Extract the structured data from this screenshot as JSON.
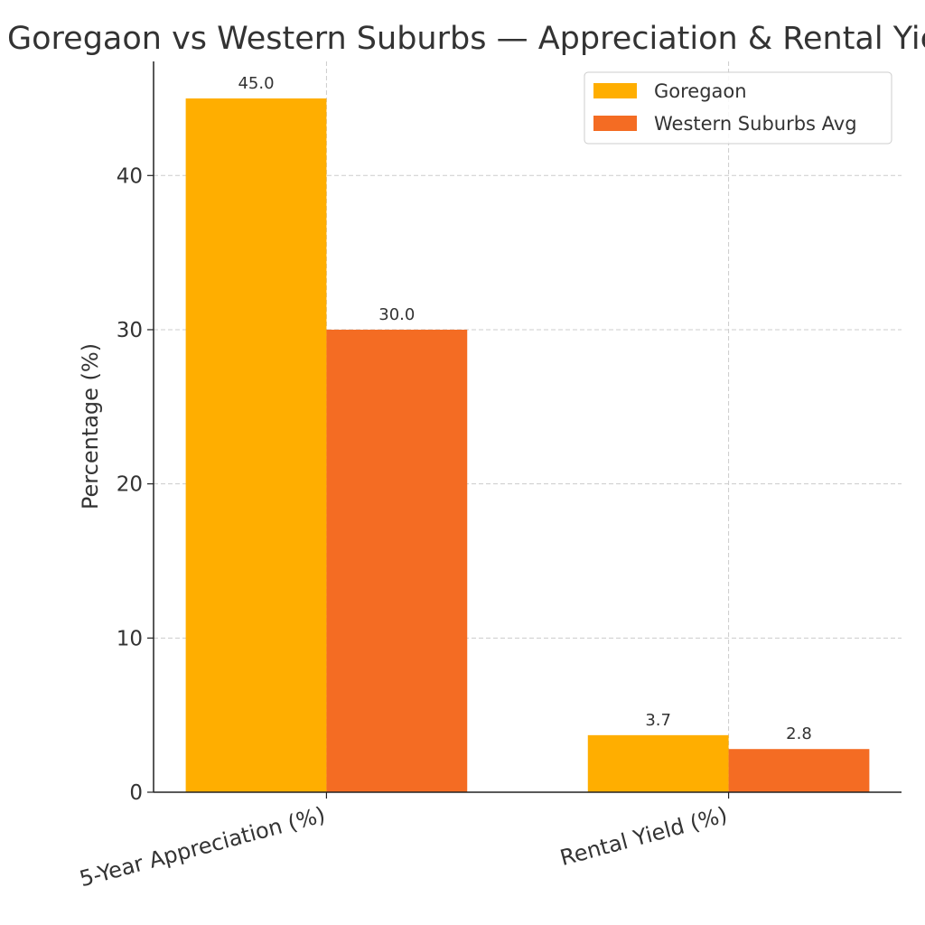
{
  "chart_data": {
    "type": "bar",
    "title": "Goregaon vs Western Suburbs — Appreciation & Rental Yield",
    "xlabel": "",
    "ylabel": "Percentage (%)",
    "categories": [
      "5-Year Appreciation (%)",
      "Rental Yield (%)"
    ],
    "series": [
      {
        "name": "Goregaon",
        "values": [
          45.0,
          3.7
        ],
        "color": "#FFAE00"
      },
      {
        "name": "Western Suburbs Avg",
        "values": [
          30.0,
          2.8
        ],
        "color": "#F46C23"
      }
    ],
    "data_labels": [
      [
        "45.0",
        "3.7"
      ],
      [
        "30.0",
        "2.8"
      ]
    ],
    "ylim": [
      0,
      47.4
    ],
    "yticks": [
      "0",
      "10",
      "20",
      "30",
      "40"
    ],
    "grid": true,
    "legend": "top-right"
  }
}
